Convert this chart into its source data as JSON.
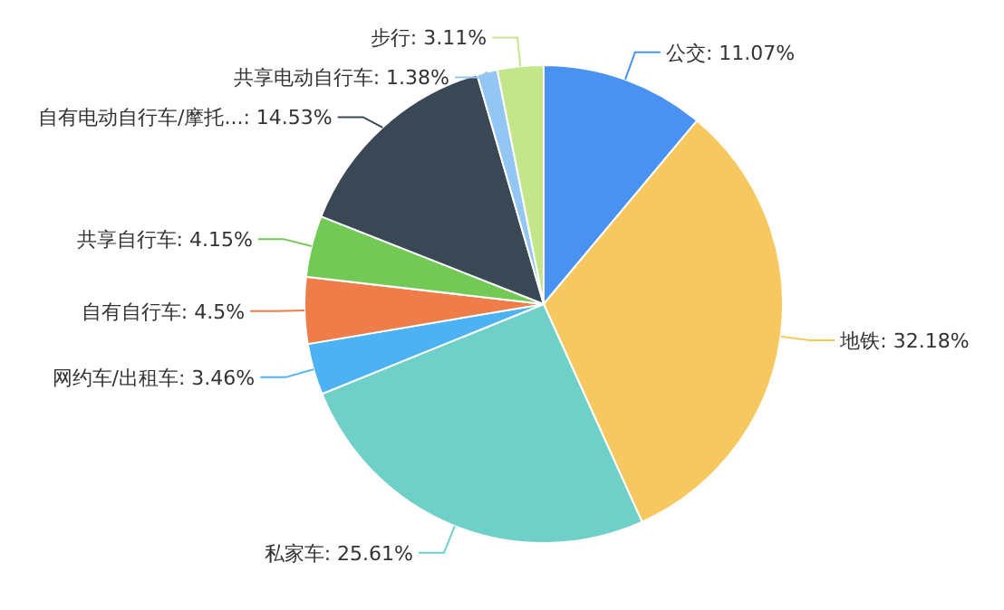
{
  "chart_data": {
    "type": "pie",
    "categories": [
      "公交",
      "地铁",
      "私家车",
      "网约车/出租车",
      "自有自行车",
      "共享自行车",
      "自有电动自行车/摩托...",
      "共享电动自行车",
      "步行"
    ],
    "values": [
      11.07,
      32.18,
      25.61,
      3.46,
      4.5,
      4.15,
      14.53,
      1.38,
      3.11
    ],
    "value_labels": [
      "11.07%",
      "32.18%",
      "25.61%",
      "3.46%",
      "4.5%",
      "4.15%",
      "14.53%",
      "1.38%",
      "3.11%"
    ],
    "colors": [
      "#4a92f2",
      "#f6c85f",
      "#6fd0c8",
      "#4cb2f4",
      "#ef7d4a",
      "#72c956",
      "#3a4856",
      "#93c6f2",
      "#c4e68a"
    ]
  }
}
